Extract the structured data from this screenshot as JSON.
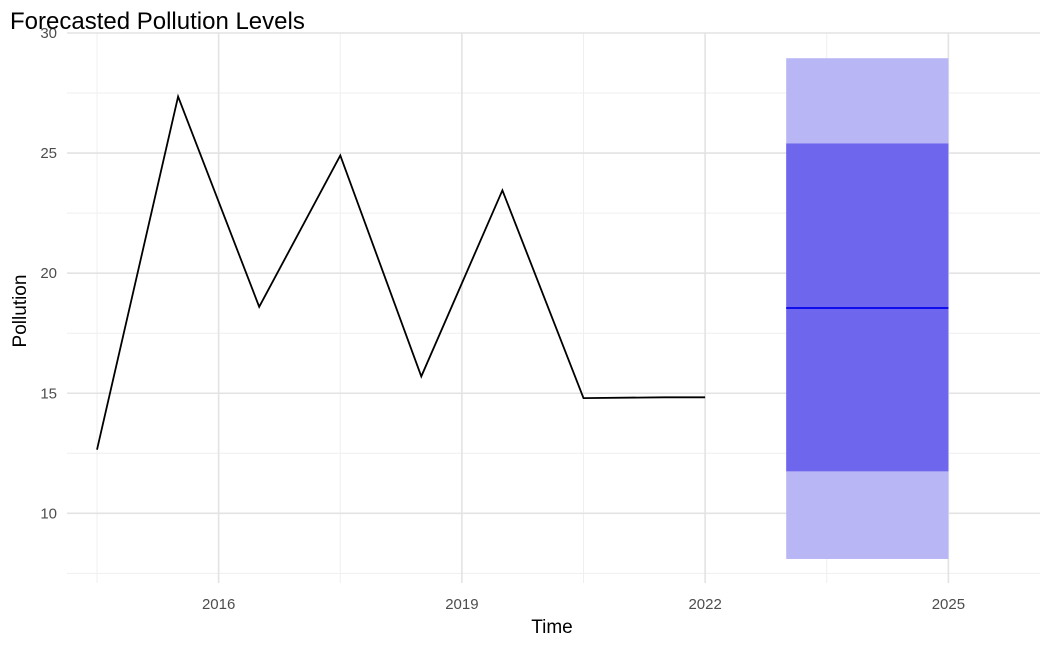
{
  "chart_data": {
    "type": "line",
    "title": "Forecasted Pollution Levels",
    "xlabel": "Time",
    "ylabel": "Pollution",
    "xlim": [
      2014.13,
      2026.13
    ],
    "ylim": [
      7.1,
      30.0
    ],
    "x_ticks": [
      2016,
      2019,
      2022,
      2025
    ],
    "y_ticks": [
      10,
      15,
      20,
      25,
      30
    ],
    "x_minor_ticks": [
      2014.5,
      2017.5,
      2020.5,
      2023.5
    ],
    "y_minor_ticks": [
      7.5,
      12.5,
      17.5,
      22.5,
      27.5
    ],
    "grid": true,
    "legend": "none",
    "series": [
      {
        "x": [
          2014.5,
          2015.5,
          2016.5,
          2017.5,
          2018.5,
          2019.5,
          2020.5,
          2021.5,
          2022.0
        ],
        "y": [
          12.65,
          27.35,
          18.6,
          24.9,
          15.7,
          23.45,
          14.8,
          14.83,
          14.83
        ],
        "color": "#000000"
      }
    ],
    "forecast": {
      "x_start": 2023.0,
      "x_end": 2025.0,
      "mean": 18.55,
      "lower_80": 11.75,
      "upper_80": 25.4,
      "lower_95": 8.1,
      "upper_95": 28.95,
      "mean_color": "#0000ee",
      "band_80_color": "#6e67ee",
      "band_95_color": "#b8b6f5"
    }
  }
}
